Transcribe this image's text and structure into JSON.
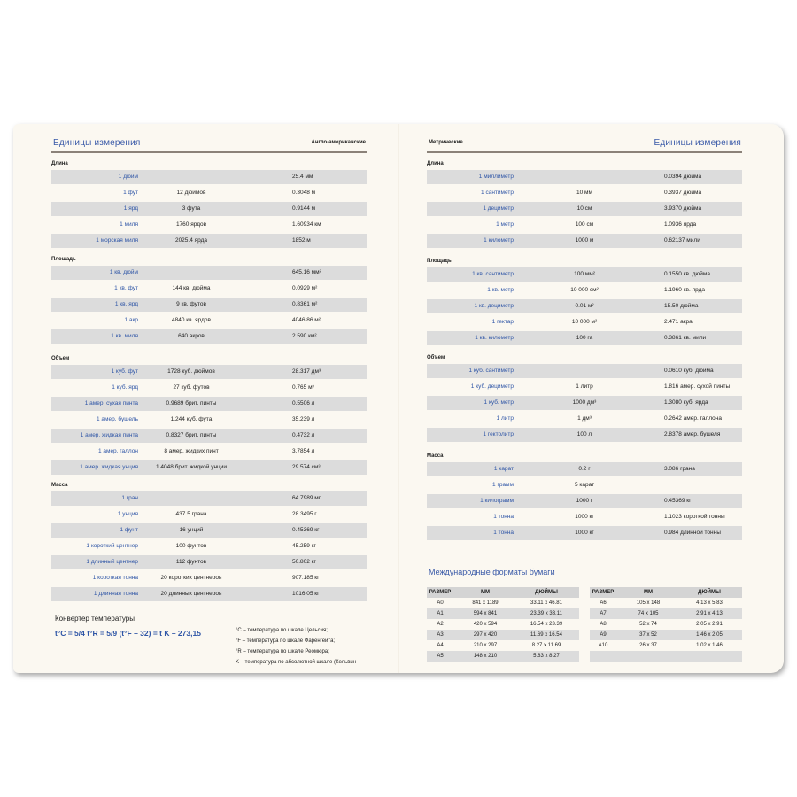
{
  "left": {
    "title": "Единицы измерения",
    "subtitle": "Англо-американские",
    "sections": [
      {
        "heading": "Длина",
        "rows": [
          [
            "1 дюйм",
            "",
            "25.4 мм"
          ],
          [
            "1 фут",
            "12 дюймов",
            "0.3048 м"
          ],
          [
            "1 ярд",
            "3 фута",
            "0.9144 м"
          ],
          [
            "1 миля",
            "1760 ярдов",
            "1.60934 км"
          ],
          [
            "1 морская миля",
            "2025.4 ярда",
            "1852 м"
          ]
        ]
      },
      {
        "heading": "Площадь",
        "rows": [
          [
            "1 кв. дюйм",
            "",
            "645.16 мм²"
          ],
          [
            "1 кв. фут",
            "144 кв. дюйма",
            "0.0929 м²"
          ],
          [
            "1 кв. ярд",
            "9 кв. футов",
            "0.8361 м²"
          ],
          [
            "1 акр",
            "4840 кв. ярдов",
            "4046.86 м²"
          ],
          [
            "1 кв. миля",
            "640 акров",
            "2.590 км²"
          ]
        ]
      },
      {
        "heading": "Объем",
        "rows": [
          [
            "1 куб. фут",
            "1728 куб. дюймов",
            "28.317 дм³"
          ],
          [
            "1 куб. ярд",
            "27 куб. футов",
            "0.765 м³"
          ],
          [
            "1 амер. сухая пинта",
            "0.9689 брит. пинты",
            "0.5506 л"
          ],
          [
            "1 амер. бушель",
            "1.244 куб. фута",
            "35.239 л"
          ],
          [
            "1 амер. жидкая пинта",
            "0.8327 брит. пинты",
            "0.4732 л"
          ],
          [
            "1 амер. галлон",
            "8 амер. жидких пинт",
            "3.7854 л"
          ],
          [
            "1 амер. жидкая унция",
            "1.4048 брит. жидкой унции",
            "29.574 см³"
          ]
        ]
      },
      {
        "heading": "Масса",
        "rows": [
          [
            "1 гран",
            "",
            "64.7989 мг"
          ],
          [
            "1 унция",
            "437.5 грана",
            "28.3495 г"
          ],
          [
            "1 фунт",
            "16 унций",
            "0.45369 кг"
          ],
          [
            "1 короткий центнер",
            "100 фунтов",
            "45.259 кг"
          ],
          [
            "1 длинный центнер",
            "112 фунтов",
            "50.802 кг"
          ],
          [
            "1 короткая тонна",
            "20 коротких центнеров",
            "907.185 кг"
          ],
          [
            "1 длинная тонна",
            "20 длинных центнеров",
            "1016.05 кг"
          ]
        ]
      }
    ],
    "temperature": {
      "heading": "Конвертер температуры",
      "formula": "t°C = 5/4 t°R = 5/9 (t°F – 32) = t K – 273,15",
      "notes": [
        "°C – температура по шкале Цельсия;",
        "°F – температура по шкале Фаренгейта;",
        "°R – температура по шкале Реомюра;",
        "K – температура по абсолютной шкале (Кельвин"
      ]
    }
  },
  "right": {
    "title": "Единицы измерения",
    "subtitle": "Метрические",
    "sections": [
      {
        "heading": "Длина",
        "rows": [
          [
            "1 миллиметр",
            "",
            "0.0394 дюйма"
          ],
          [
            "1 сантиметр",
            "10 мм",
            "0.3937 дюйма"
          ],
          [
            "1 дециметр",
            "10 см",
            "3.9370 дюйма"
          ],
          [
            "1 метр",
            "100 см",
            "1.0936 ярда"
          ],
          [
            "1 километр",
            "1000 м",
            "0.62137 мили"
          ]
        ]
      },
      {
        "heading": "Площадь",
        "rows": [
          [
            "1 кв. сантиметр",
            "100 мм²",
            "0.1550 кв. дюйма"
          ],
          [
            "1 кв. метр",
            "10 000 см²",
            "1.1960 кв. ярда"
          ],
          [
            "1 кв. дециметр",
            "0.01 м²",
            "15.50 дюйма"
          ],
          [
            "1 гектар",
            "10 000 м²",
            "2.471 акра"
          ],
          [
            "1 кв. километр",
            "100 га",
            "0.3861 кв. мили"
          ]
        ]
      },
      {
        "heading": "Объем",
        "rows": [
          [
            "1 куб. сантиметр",
            "",
            "0.0610 куб. дюйма"
          ],
          [
            "1 куб. дециметр",
            "1 литр",
            "1.816 амер. сухой пинты"
          ],
          [
            "1 куб. метр",
            "1000 дм³",
            "1.3080 куб. ярда"
          ],
          [
            "1 литр",
            "1 дм³",
            "0.2642 амер. галлона"
          ],
          [
            "1 гектолитр",
            "100 л",
            "2.8378 амер. бушеля"
          ]
        ]
      },
      {
        "heading": "Масса",
        "rows": [
          [
            "1 карат",
            "0.2 г",
            "3.086 грана"
          ],
          [
            "1 грамм",
            "5 карат",
            ""
          ],
          [
            "1 килограмм",
            "1000 г",
            "0.45369 кг"
          ],
          [
            "1 тонна",
            "1000 кг",
            "1.1023 короткой тонны"
          ],
          [
            "1 тонна",
            "1000 кг",
            "0.984 длинной тонны"
          ]
        ]
      }
    ],
    "paper": {
      "title": "Международные форматы бумаги",
      "headers": [
        "РАЗМЕР",
        "ММ",
        "ДЮЙМЫ"
      ],
      "left_rows": [
        [
          "A0",
          "841 x 1189",
          "33.11 x 46.81"
        ],
        [
          "A1",
          "594 x 841",
          "23.39 x 33.11"
        ],
        [
          "A2",
          "420 x 594",
          "16.54 x 23.39"
        ],
        [
          "A3",
          "297 x 420",
          "11.69 x 16.54"
        ],
        [
          "A4",
          "210 x 297",
          "8.27 x 11.69"
        ],
        [
          "A5",
          "148 x 210",
          "5.83 x 8.27"
        ]
      ],
      "right_rows": [
        [
          "A6",
          "105 x 148",
          "4.13 x 5.83"
        ],
        [
          "A7",
          "74 x 105",
          "2.91 x 4.13"
        ],
        [
          "A8",
          "52 x 74",
          "2.05 x 2.91"
        ],
        [
          "A9",
          "37 x 52",
          "1.46 x 2.05"
        ],
        [
          "A10",
          "26 x 37",
          "1.02 x 1.46"
        ],
        [
          "",
          "",
          ""
        ]
      ]
    }
  },
  "colors": {
    "accent_blue": "#2e55a6",
    "row_gray": "#dcdcdc",
    "page": "#fbf8f1"
  }
}
